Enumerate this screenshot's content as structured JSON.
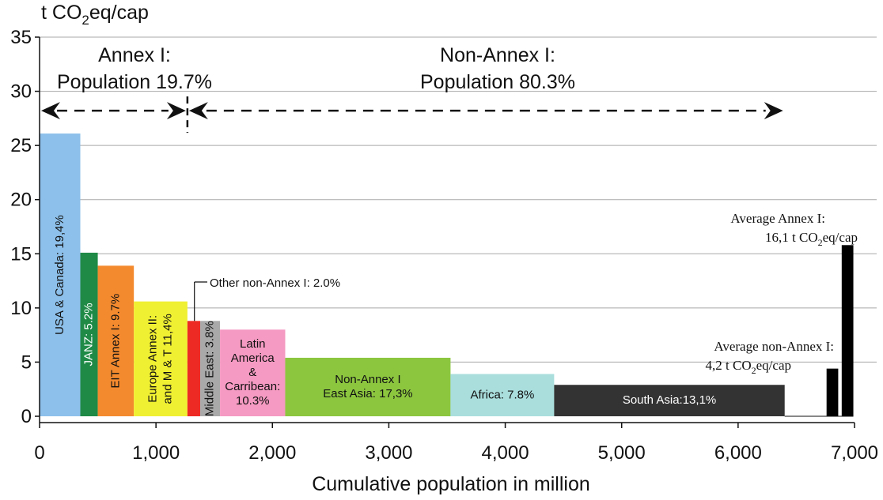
{
  "chart_data": {
    "type": "bar",
    "subtype": "variable-width",
    "ylabel_main": "t CO",
    "ylabel_sub": "2",
    "ylabel_tail": "eq/cap",
    "xlabel": "Cumulative population in million",
    "xlim": [
      0,
      7000
    ],
    "ylim": [
      0,
      35
    ],
    "yticks": [
      0,
      5,
      10,
      15,
      20,
      25,
      30,
      35
    ],
    "xticks": [
      "0",
      "1,000",
      "2,000",
      "3,000",
      "4,000",
      "5,000",
      "6,000",
      "7,000"
    ],
    "xtick_values": [
      0,
      1000,
      2000,
      3000,
      4000,
      5000,
      6000,
      7000
    ],
    "grid": "horizontal",
    "bars": [
      {
        "label": "USA & Canada: 19,4%",
        "x0": 0,
        "x1": 350,
        "value": 26.1,
        "color": "#8dc0ea",
        "label_color": "#111111",
        "orientation": "vertical"
      },
      {
        "label": "JANZ: 5.2%",
        "x0": 350,
        "x1": 500,
        "value": 15.1,
        "color": "#1f8a46",
        "label_color": "#ffffff",
        "orientation": "vertical"
      },
      {
        "label": "EIT Annex I: 9.7%",
        "x0": 500,
        "x1": 810,
        "value": 13.9,
        "color": "#f48a2e",
        "label_color": "#111111",
        "orientation": "vertical"
      },
      {
        "label": [
          "Europe Annex II:",
          "and M & T 11,4%"
        ],
        "x0": 810,
        "x1": 1270,
        "value": 10.6,
        "color": "#f0f032",
        "label_color": "#111111",
        "orientation": "vertical"
      },
      {
        "label": "",
        "x0": 1270,
        "x1": 1380,
        "value": 8.8,
        "color": "#ee2a24",
        "label_color": "#111111",
        "orientation": "none"
      },
      {
        "label": "Middle East: 3.8%",
        "x0": 1380,
        "x1": 1550,
        "value": 8.8,
        "color": "#a9a9a9",
        "label_color": "#111111",
        "orientation": "vertical"
      },
      {
        "label": [
          "Latin",
          "America",
          "&",
          "Carribean:",
          "10.3%"
        ],
        "x0": 1550,
        "x1": 2110,
        "value": 8.0,
        "color": "#f59ac2",
        "label_color": "#111111",
        "orientation": "horizontal"
      },
      {
        "label": [
          "Non-Annex I",
          "East Asia: 17,3%"
        ],
        "x0": 2110,
        "x1": 3530,
        "value": 5.4,
        "color": "#8cc63f",
        "label_color": "#111111",
        "orientation": "horizontal"
      },
      {
        "label": "Africa: 7.8%",
        "x0": 3530,
        "x1": 4420,
        "value": 3.9,
        "color": "#a9dedd",
        "label_color": "#111111",
        "orientation": "horizontal"
      },
      {
        "label": "South Asia:13,1%",
        "x0": 4420,
        "x1": 6400,
        "value": 2.9,
        "color": "#333333",
        "label_color": "#ffffff",
        "orientation": "horizontal"
      },
      {
        "label": "",
        "x0": 6760,
        "x1": 6860,
        "value": 4.4,
        "color": "#000000",
        "label_color": "#111111",
        "orientation": "none"
      },
      {
        "label": "",
        "x0": 6890,
        "x1": 6990,
        "value": 15.8,
        "color": "#000000",
        "label_color": "#111111",
        "orientation": "none"
      }
    ],
    "annotations": {
      "annex1": {
        "line1": "Annex I:",
        "line2": "Population 19.7%"
      },
      "nonannex1": {
        "line1": "Non-Annex I:",
        "line2": "Population 80.3%"
      },
      "other_nonannex": "Other non-Annex I: 2.0%",
      "avg_annex": {
        "line1": "Average Annex I:",
        "line2_pre": "16,1 t CO",
        "line2_sub": "2",
        "line2_post": "eq/cap"
      },
      "avg_nonannex": {
        "line1": "Average non-Annex I:",
        "line2_pre": "4,2 t CO",
        "line2_sub": "2",
        "line2_post": "eq/cap"
      }
    },
    "arrow_y": 28.5,
    "divider_x": 1270
  }
}
